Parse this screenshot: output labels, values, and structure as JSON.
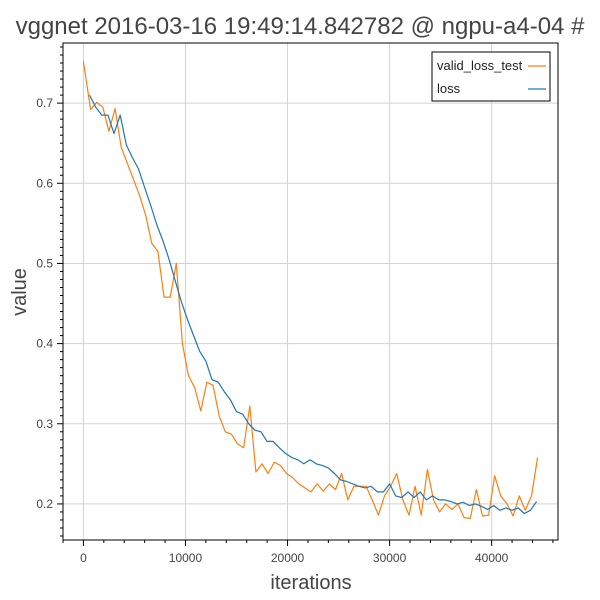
{
  "chart_data": {
    "type": "line",
    "title": "vggnet 2016-03-16 19:49:14.842782 @ ngpu-a4-04 #",
    "xlabel": "iterations",
    "ylabel": "value",
    "xlim": [
      -2000,
      46500
    ],
    "ylim": [
      0.155,
      0.775
    ],
    "xticks": [
      0,
      10000,
      20000,
      30000,
      40000
    ],
    "yticks": [
      0.2,
      0.3,
      0.4,
      0.5,
      0.6,
      0.7
    ],
    "grid": true,
    "legend_position": "top-right",
    "series": [
      {
        "name": "valid_loss_test",
        "color": "#ff7f0e",
        "x": [
          0,
          700,
          1300,
          1900,
          2500,
          3100,
          3700,
          4300,
          4900,
          5500,
          6100,
          6700,
          7300,
          7900,
          8500,
          9100,
          9700,
          10300,
          10900,
          11500,
          12100,
          12700,
          13300,
          13900,
          14500,
          15100,
          15700,
          16300,
          16900,
          17500,
          18100,
          18700,
          19300,
          19900,
          20500,
          21100,
          21700,
          22300,
          22900,
          23500,
          24100,
          24700,
          25300,
          25900,
          26500,
          27100,
          27700,
          28300,
          28900,
          29500,
          30100,
          30700,
          31300,
          31900,
          32500,
          33100,
          33700,
          34300,
          34900,
          35500,
          36100,
          36700,
          37300,
          37900,
          38500,
          39100,
          39700,
          40300,
          40900,
          41500,
          42100,
          42700,
          43300,
          43900,
          44500
        ],
        "values": [
          0.752,
          0.692,
          0.701,
          0.695,
          0.665,
          0.693,
          0.645,
          0.625,
          0.605,
          0.585,
          0.56,
          0.525,
          0.515,
          0.458,
          0.458,
          0.5,
          0.4,
          0.36,
          0.345,
          0.316,
          0.352,
          0.348,
          0.31,
          0.29,
          0.287,
          0.275,
          0.27,
          0.322,
          0.24,
          0.25,
          0.238,
          0.252,
          0.248,
          0.238,
          0.233,
          0.225,
          0.22,
          0.215,
          0.225,
          0.216,
          0.225,
          0.218,
          0.238,
          0.205,
          0.222,
          0.222,
          0.222,
          0.205,
          0.186,
          0.21,
          0.222,
          0.238,
          0.205,
          0.186,
          0.222,
          0.186,
          0.243,
          0.205,
          0.19,
          0.2,
          0.193,
          0.2,
          0.183,
          0.182,
          0.218,
          0.185,
          0.186,
          0.235,
          0.21,
          0.2,
          0.185,
          0.21,
          0.192,
          0.21,
          0.258
        ]
      },
      {
        "name": "loss",
        "color": "#1f77b4",
        "x": [
          600,
          1200,
          1800,
          2400,
          3000,
          3600,
          4200,
          4800,
          5400,
          6000,
          6600,
          7200,
          7800,
          8400,
          9000,
          9600,
          10200,
          10800,
          11400,
          12000,
          12600,
          13200,
          13800,
          14400,
          15000,
          15600,
          16200,
          16800,
          17400,
          18000,
          18600,
          19200,
          19800,
          20400,
          21000,
          21600,
          22200,
          22800,
          23400,
          24000,
          24600,
          25200,
          25800,
          26400,
          27000,
          27600,
          28200,
          28800,
          29400,
          30000,
          30600,
          31200,
          31800,
          32400,
          33000,
          33600,
          34200,
          34800,
          35400,
          36000,
          36600,
          37200,
          37800,
          38400,
          39000,
          39600,
          40200,
          40800,
          41400,
          42000,
          42600,
          43200,
          43800,
          44400
        ],
        "values": [
          0.71,
          0.695,
          0.685,
          0.685,
          0.662,
          0.685,
          0.648,
          0.632,
          0.618,
          0.595,
          0.572,
          0.548,
          0.528,
          0.505,
          0.478,
          0.452,
          0.43,
          0.41,
          0.39,
          0.378,
          0.355,
          0.352,
          0.34,
          0.33,
          0.315,
          0.312,
          0.3,
          0.292,
          0.29,
          0.278,
          0.278,
          0.27,
          0.263,
          0.258,
          0.255,
          0.25,
          0.255,
          0.25,
          0.248,
          0.245,
          0.238,
          0.23,
          0.228,
          0.225,
          0.222,
          0.22,
          0.222,
          0.215,
          0.215,
          0.225,
          0.21,
          0.208,
          0.215,
          0.208,
          0.215,
          0.205,
          0.21,
          0.205,
          0.205,
          0.203,
          0.2,
          0.202,
          0.198,
          0.2,
          0.197,
          0.193,
          0.198,
          0.192,
          0.195,
          0.192,
          0.195,
          0.188,
          0.192,
          0.203
        ]
      }
    ]
  }
}
